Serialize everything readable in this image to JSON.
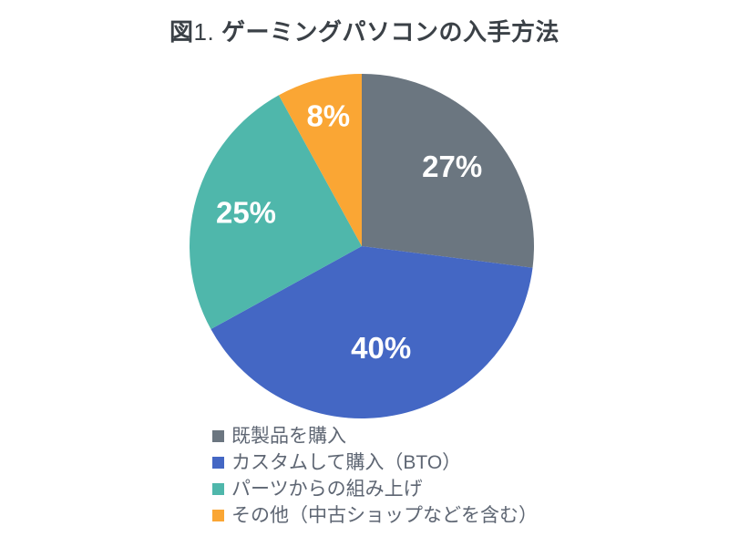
{
  "title": {
    "figure_label": "図",
    "figure_number": "1. ",
    "main": "ゲーミングパソコンの入手方法"
  },
  "colors": {
    "background": "#FFFFFF",
    "title_text": "#3B4147",
    "legend_text": "#5E6673"
  },
  "chart_data": {
    "type": "pie",
    "title": "図1. ゲーミングパソコンの入手方法",
    "start_angle_deg": 0,
    "direction": "clockwise",
    "legend_position": "bottom-left",
    "data_label_color": "#FFFFFF",
    "slices": [
      {
        "label": "既製品を購入",
        "value": 27,
        "pct_label": "27%",
        "color": "#6B7680",
        "label_r_frac": 0.7
      },
      {
        "label": "カスタムして購入（BTO）",
        "value": 40,
        "pct_label": "40%",
        "color": "#4467C4",
        "label_r_frac": 0.6
      },
      {
        "label": "パーツからの組み上げ",
        "value": 25,
        "pct_label": "25%",
        "color": "#4FB7AB",
        "label_r_frac": 0.7
      },
      {
        "label": "その他（中古ショップなどを含む）",
        "value": 8,
        "pct_label": "8%",
        "color": "#FAA634",
        "label_r_frac": 0.78
      }
    ]
  }
}
